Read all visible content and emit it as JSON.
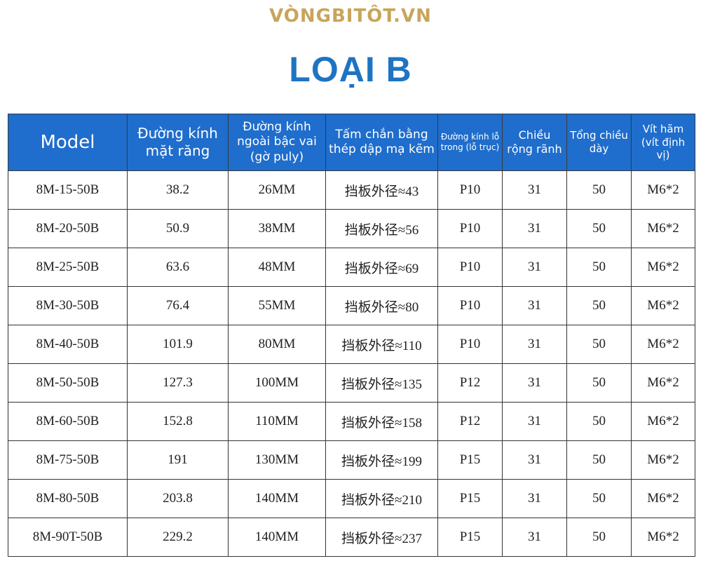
{
  "brand": "VÒNGBITÔT.VN",
  "title": "LOẠI B",
  "colors": {
    "header_bg": "#1f6dcc",
    "title": "#1e74c2",
    "brand": "#c8a55a"
  },
  "table": {
    "headers": [
      "Model",
      "Đường kính mặt răng",
      "Đường kính ngoài bậc vai (gờ puly)",
      "Tấm chắn bằng thép dập mạ kẽm",
      "Đường kính lỗ trong (lỗ trục)",
      "Chiều rộng rãnh",
      "Tổng chiều dày",
      "Vít hãm (vít định vị)"
    ],
    "rows": [
      [
        "8M-15-50B",
        "38.2",
        "26MM",
        "挡板外径≈43",
        "P10",
        "31",
        "50",
        "M6*2"
      ],
      [
        "8M-20-50B",
        "50.9",
        "38MM",
        "挡板外径≈56",
        "P10",
        "31",
        "50",
        "M6*2"
      ],
      [
        "8M-25-50B",
        "63.6",
        "48MM",
        "挡板外径≈69",
        "P10",
        "31",
        "50",
        "M6*2"
      ],
      [
        "8M-30-50B",
        "76.4",
        "55MM",
        "挡板外径≈80",
        "P10",
        "31",
        "50",
        "M6*2"
      ],
      [
        "8M-40-50B",
        "101.9",
        "80MM",
        "挡板外径≈110",
        "P10",
        "31",
        "50",
        "M6*2"
      ],
      [
        "8M-50-50B",
        "127.3",
        "100MM",
        "挡板外径≈135",
        "P12",
        "31",
        "50",
        "M6*2"
      ],
      [
        "8M-60-50B",
        "152.8",
        "110MM",
        "挡板外径≈158",
        "P12",
        "31",
        "50",
        "M6*2"
      ],
      [
        "8M-75-50B",
        "191",
        "130MM",
        "挡板外径≈199",
        "P15",
        "31",
        "50",
        "M6*2"
      ],
      [
        "8M-80-50B",
        "203.8",
        "140MM",
        "挡板外径≈210",
        "P15",
        "31",
        "50",
        "M6*2"
      ],
      [
        "8M-90T-50B",
        "229.2",
        "140MM",
        "挡板外径≈237",
        "P15",
        "31",
        "50",
        "M6*2"
      ]
    ]
  }
}
